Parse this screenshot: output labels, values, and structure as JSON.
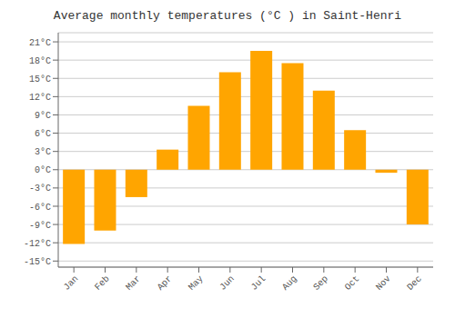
{
  "chart_data": {
    "type": "bar",
    "title": "Average monthly temperatures (°C ) in Saint-Henri",
    "categories": [
      "Jan",
      "Feb",
      "Mar",
      "Apr",
      "May",
      "Jun",
      "Jul",
      "Aug",
      "Sep",
      "Oct",
      "Nov",
      "Dec"
    ],
    "values": [
      -12.2,
      -10.0,
      -4.5,
      3.3,
      10.5,
      16.0,
      19.5,
      17.5,
      13.0,
      6.5,
      -0.5,
      -9.0
    ],
    "color": "#FFA500",
    "ylim": [
      -16,
      22.5
    ],
    "yticks": [
      {
        "value": -15,
        "label": "-15°C"
      },
      {
        "value": -12,
        "label": "-12°C"
      },
      {
        "value": -9,
        "label": "-9°C"
      },
      {
        "value": -6,
        "label": "-6°C"
      },
      {
        "value": -3,
        "label": "-3°C"
      },
      {
        "value": 0,
        "label": "0°C"
      },
      {
        "value": 3,
        "label": "3°C"
      },
      {
        "value": 6,
        "label": "6°C"
      },
      {
        "value": 9,
        "label": "9°C"
      },
      {
        "value": 12,
        "label": "12°C"
      },
      {
        "value": 15,
        "label": "15°C"
      },
      {
        "value": 18,
        "label": "18°C"
      },
      {
        "value": 21,
        "label": "21°C"
      }
    ],
    "grid": true
  }
}
